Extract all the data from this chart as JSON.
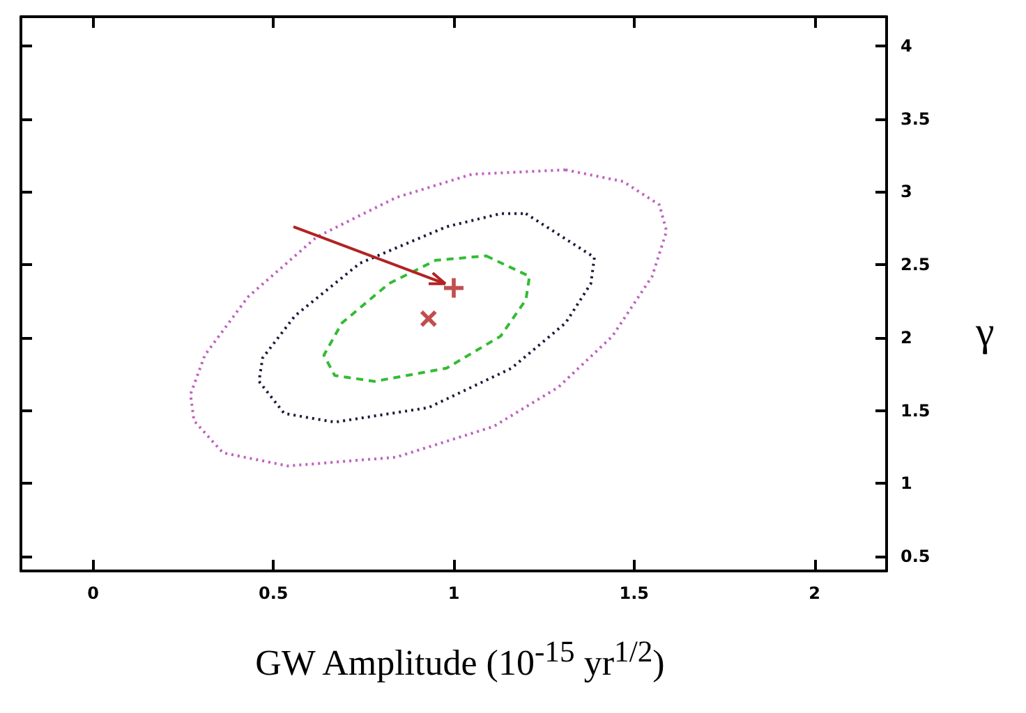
{
  "chart_data": {
    "type": "scatter",
    "xlabel": "GW Amplitude (10$^{-15}$ yr$^{1/2}$)",
    "ylabel": "γ",
    "xlim": [
      -0.2,
      2.2
    ],
    "ylim": [
      0.4,
      4.2
    ],
    "xticks": [
      0,
      0.5,
      1,
      1.5,
      2
    ],
    "yticks": [
      0.5,
      1,
      1.5,
      2,
      2.5,
      3,
      3.5,
      4
    ],
    "grid": false,
    "series": [
      {
        "color": "#b22222",
        "marker": "cross",
        "x": [
          1.0
        ],
        "values": [
          2.34
        ]
      },
      {
        "color": "#b22222",
        "marker": "x",
        "x": [
          0.93
        ],
        "values": [
          2.13
        ]
      }
    ]
  }
}
